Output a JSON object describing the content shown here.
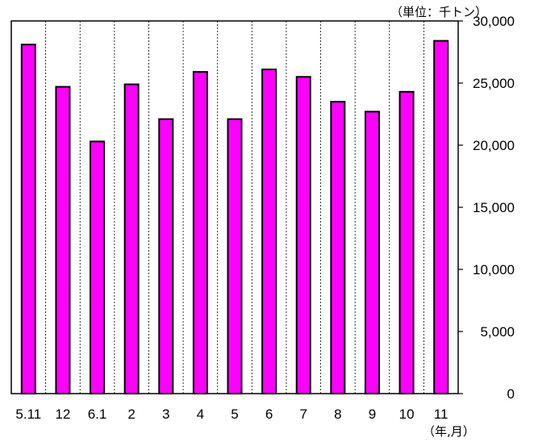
{
  "chart_data": {
    "type": "bar",
    "title": "",
    "unit_label": "（単位：千トン）",
    "xlabel": "（年,月）",
    "ylabel": "",
    "categories": [
      "5.11",
      "12",
      "6.1",
      "2",
      "3",
      "4",
      "5",
      "6",
      "7",
      "8",
      "9",
      "10",
      "11"
    ],
    "values": [
      28100,
      24700,
      20300,
      24900,
      22100,
      25900,
      22100,
      26100,
      25500,
      23500,
      22700,
      24300,
      28400
    ],
    "ylim": [
      0,
      30000
    ],
    "yticks": [
      0,
      5000,
      10000,
      15000,
      20000,
      25000,
      30000
    ],
    "ytick_labels": [
      "0",
      "5,000",
      "10,000",
      "15,000",
      "20,000",
      "25,000",
      "30,000"
    ],
    "y_axis_side": "right",
    "grid": "vertical dotted",
    "bar_color": "#ff00ff",
    "bar_edge_color": "#000000",
    "legend": "none"
  }
}
